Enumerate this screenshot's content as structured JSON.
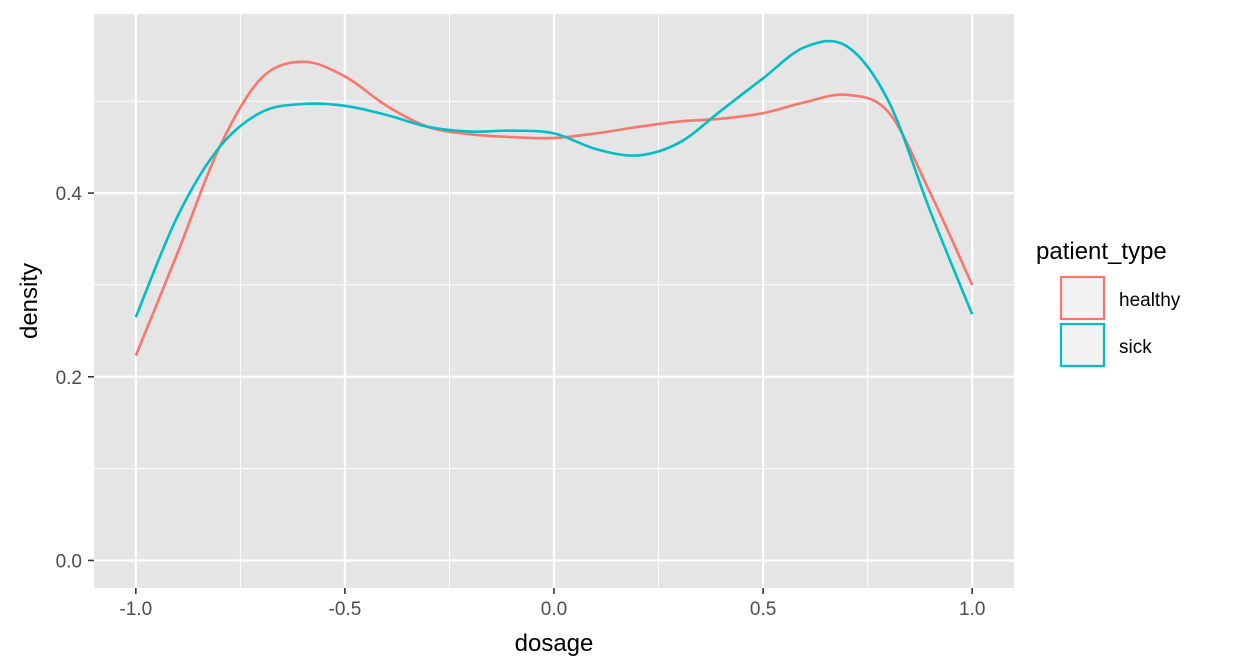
{
  "chart_data": {
    "type": "line",
    "title": "",
    "xlabel": "dosage",
    "ylabel": "density",
    "xlim": [
      -1.1,
      1.1
    ],
    "ylim": [
      -0.03,
      0.595
    ],
    "x_ticks": [
      -1.0,
      -0.5,
      0.0,
      0.5,
      1.0
    ],
    "x_tick_labels": [
      "-1.0",
      "-0.5",
      "0.0",
      "0.5",
      "1.0"
    ],
    "y_ticks": [
      0.0,
      0.2,
      0.4
    ],
    "y_tick_labels": [
      "0.0",
      "0.2",
      "0.4"
    ],
    "x_minor_ticks": [
      -0.75,
      -0.25,
      0.25,
      0.75
    ],
    "y_minor_ticks": [
      0.1,
      0.3,
      0.5
    ],
    "grid": true,
    "panel_background": "#e5e5e5",
    "grid_color": "#ffffff",
    "legend": {
      "title": "patient_type",
      "position": "right"
    },
    "series": [
      {
        "name": "healthy",
        "color": "#f8766d",
        "x": [
          -1.0,
          -0.9,
          -0.8,
          -0.7,
          -0.6,
          -0.5,
          -0.4,
          -0.3,
          -0.2,
          -0.1,
          0.0,
          0.1,
          0.2,
          0.3,
          0.4,
          0.5,
          0.6,
          0.7,
          0.8,
          0.9,
          1.0
        ],
        "y": [
          0.223,
          0.335,
          0.45,
          0.525,
          0.543,
          0.527,
          0.495,
          0.472,
          0.464,
          0.461,
          0.46,
          0.465,
          0.472,
          0.478,
          0.481,
          0.487,
          0.499,
          0.507,
          0.488,
          0.4,
          0.3
        ]
      },
      {
        "name": "sick",
        "color": "#00bfc4",
        "x": [
          -1.0,
          -0.9,
          -0.8,
          -0.7,
          -0.6,
          -0.5,
          -0.4,
          -0.3,
          -0.2,
          -0.1,
          0.0,
          0.1,
          0.2,
          0.3,
          0.4,
          0.5,
          0.6,
          0.7,
          0.8,
          0.9,
          1.0
        ],
        "y": [
          0.265,
          0.375,
          0.45,
          0.488,
          0.497,
          0.495,
          0.485,
          0.472,
          0.467,
          0.468,
          0.465,
          0.448,
          0.441,
          0.455,
          0.49,
          0.525,
          0.559,
          0.56,
          0.5,
          0.38,
          0.268
        ]
      }
    ]
  }
}
